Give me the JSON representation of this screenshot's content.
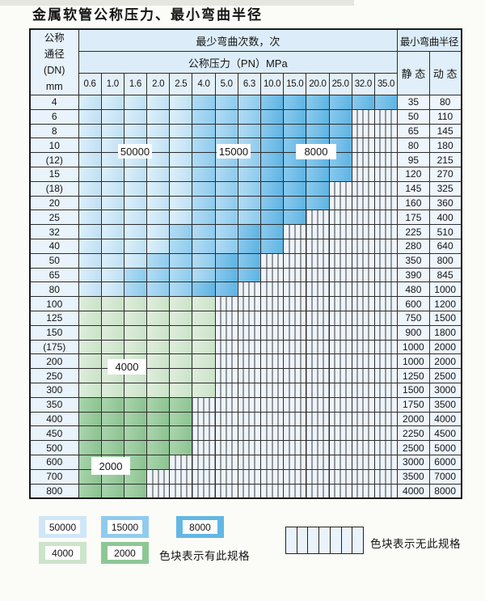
{
  "title": "金属软管公称压力、最小弯曲半径",
  "colors": {
    "band_50000": "#cfe7f7",
    "band_15000": "#90cbee",
    "band_8000": "#63b7e5",
    "band_4000": "#cbe4ca",
    "band_2000": "#8cc794",
    "no_spec_bg": "#eef4fb",
    "header_bg": "#dcedf9",
    "grid_line": "#2c2c2c"
  },
  "table": {
    "dn_header_lines": [
      "公称",
      "通径",
      "(DN)",
      "mm"
    ],
    "bend_times_header": "最少弯曲次数，次",
    "pn_header": "公称压力（PN）MPa",
    "min_radius_header": "最小弯曲半径",
    "static_header": "静 态",
    "dynamic_header": "动 态",
    "pressures": [
      "0.6",
      "1.0",
      "1.6",
      "2.0",
      "2.5",
      "4.0",
      "5.0",
      "6.3",
      "10.0",
      "15.0",
      "20.0",
      "25.0",
      "32.0",
      "35.0"
    ],
    "rows": [
      {
        "dn": "4",
        "static": "35",
        "dynamic": "80",
        "cells": [
          "b1",
          "b1",
          "b1",
          "b1",
          "b1",
          "b2",
          "b2",
          "b2",
          "b3",
          "b3",
          "b3",
          "b3",
          "b3",
          "b3"
        ]
      },
      {
        "dn": "6",
        "static": "50",
        "dynamic": "110",
        "cells": [
          "b1",
          "b1",
          "b1",
          "b1",
          "b1",
          "b2",
          "b2",
          "b2",
          "b3",
          "b3",
          "b3",
          "b3",
          "h",
          "h"
        ]
      },
      {
        "dn": "8",
        "static": "65",
        "dynamic": "145",
        "cells": [
          "b1",
          "b1",
          "b1",
          "b1",
          "b1",
          "b2",
          "b2",
          "b2",
          "b3",
          "b3",
          "b3",
          "b3",
          "h",
          "h"
        ]
      },
      {
        "dn": "10",
        "static": "80",
        "dynamic": "180",
        "cells": [
          "b1",
          "b1",
          "b1",
          "b1",
          "b1",
          "b2",
          "b2",
          "b2",
          "b3",
          "b3",
          "b3",
          "b3",
          "h",
          "h"
        ]
      },
      {
        "dn": "(12)",
        "static": "95",
        "dynamic": "215",
        "cells": [
          "b1",
          "b1",
          "b1",
          "b1",
          "b1",
          "b2",
          "b2",
          "b2",
          "b3",
          "b3",
          "b3",
          "b3",
          "h",
          "h"
        ]
      },
      {
        "dn": "15",
        "static": "120",
        "dynamic": "270",
        "cells": [
          "b1",
          "b1",
          "b1",
          "b1",
          "b1",
          "b2",
          "b2",
          "b2",
          "b3",
          "b3",
          "b3",
          "b3",
          "h",
          "h"
        ]
      },
      {
        "dn": "(18)",
        "static": "145",
        "dynamic": "325",
        "cells": [
          "b1",
          "b1",
          "b1",
          "b1",
          "b1",
          "b2",
          "b2",
          "b2",
          "b3",
          "b3",
          "b3",
          "h",
          "h",
          "h"
        ]
      },
      {
        "dn": "20",
        "static": "160",
        "dynamic": "360",
        "cells": [
          "b1",
          "b1",
          "b1",
          "b1",
          "b1",
          "b2",
          "b2",
          "b2",
          "b3",
          "b3",
          "b3",
          "h",
          "h",
          "h"
        ]
      },
      {
        "dn": "25",
        "static": "175",
        "dynamic": "400",
        "cells": [
          "b1",
          "b1",
          "b1",
          "b1",
          "b1",
          "b2",
          "b2",
          "b2",
          "b3",
          "b3",
          "h",
          "h",
          "h",
          "h"
        ]
      },
      {
        "dn": "32",
        "static": "225",
        "dynamic": "510",
        "cells": [
          "b1",
          "b1",
          "b1",
          "b1",
          "b2",
          "b2",
          "b2",
          "b3",
          "b3",
          "h",
          "h",
          "h",
          "h",
          "h"
        ]
      },
      {
        "dn": "40",
        "static": "280",
        "dynamic": "640",
        "cells": [
          "b1",
          "b1",
          "b1",
          "b1",
          "b2",
          "b2",
          "b2",
          "b3",
          "b3",
          "h",
          "h",
          "h",
          "h",
          "h"
        ]
      },
      {
        "dn": "50",
        "static": "350",
        "dynamic": "800",
        "cells": [
          "b1",
          "b1",
          "b1",
          "b2",
          "b2",
          "b2",
          "b3",
          "b3",
          "h",
          "h",
          "h",
          "h",
          "h",
          "h"
        ]
      },
      {
        "dn": "65",
        "static": "390",
        "dynamic": "845",
        "cells": [
          "b1",
          "b1",
          "b2",
          "b2",
          "b2",
          "b2",
          "b3",
          "b3",
          "h",
          "h",
          "h",
          "h",
          "h",
          "h"
        ]
      },
      {
        "dn": "80",
        "static": "480",
        "dynamic": "1000",
        "cells": [
          "b1",
          "b1",
          "b2",
          "b2",
          "b2",
          "b3",
          "b3",
          "h",
          "h",
          "h",
          "h",
          "h",
          "h",
          "h"
        ]
      },
      {
        "dn": "100",
        "static": "600",
        "dynamic": "1200",
        "cells": [
          "g1",
          "g1",
          "g1",
          "g1",
          "g1",
          "g1",
          "h",
          "h",
          "h",
          "h",
          "h",
          "h",
          "h",
          "h"
        ]
      },
      {
        "dn": "125",
        "static": "750",
        "dynamic": "1500",
        "cells": [
          "g1",
          "g1",
          "g1",
          "g1",
          "g1",
          "g1",
          "h",
          "h",
          "h",
          "h",
          "h",
          "h",
          "h",
          "h"
        ]
      },
      {
        "dn": "150",
        "static": "900",
        "dynamic": "1800",
        "cells": [
          "g1",
          "g1",
          "g1",
          "g1",
          "g1",
          "g1",
          "h",
          "h",
          "h",
          "h",
          "h",
          "h",
          "h",
          "h"
        ]
      },
      {
        "dn": "(175)",
        "static": "1000",
        "dynamic": "2000",
        "cells": [
          "g1",
          "g1",
          "g1",
          "g1",
          "g1",
          "g1",
          "h",
          "h",
          "h",
          "h",
          "h",
          "h",
          "h",
          "h"
        ]
      },
      {
        "dn": "200",
        "static": "1000",
        "dynamic": "2000",
        "cells": [
          "g1",
          "g1",
          "g1",
          "g1",
          "g1",
          "g1",
          "h",
          "h",
          "h",
          "h",
          "h",
          "h",
          "h",
          "h"
        ]
      },
      {
        "dn": "250",
        "static": "1250",
        "dynamic": "2500",
        "cells": [
          "g1",
          "g1",
          "g1",
          "g1",
          "g1",
          "g1",
          "h",
          "h",
          "h",
          "h",
          "h",
          "h",
          "h",
          "h"
        ]
      },
      {
        "dn": "300",
        "static": "1500",
        "dynamic": "3000",
        "cells": [
          "g1",
          "g1",
          "g1",
          "g1",
          "g1",
          "g1",
          "h",
          "h",
          "h",
          "h",
          "h",
          "h",
          "h",
          "h"
        ]
      },
      {
        "dn": "350",
        "static": "1750",
        "dynamic": "3500",
        "cells": [
          "g2",
          "g2",
          "g2",
          "g2",
          "g2",
          "h",
          "h",
          "h",
          "h",
          "h",
          "h",
          "h",
          "h",
          "h"
        ]
      },
      {
        "dn": "400",
        "static": "2000",
        "dynamic": "4000",
        "cells": [
          "g2",
          "g2",
          "g2",
          "g2",
          "g2",
          "h",
          "h",
          "h",
          "h",
          "h",
          "h",
          "h",
          "h",
          "h"
        ]
      },
      {
        "dn": "450",
        "static": "2250",
        "dynamic": "4500",
        "cells": [
          "g2",
          "g2",
          "g2",
          "g2",
          "g2",
          "h",
          "h",
          "h",
          "h",
          "h",
          "h",
          "h",
          "h",
          "h"
        ]
      },
      {
        "dn": "500",
        "static": "2500",
        "dynamic": "5000",
        "cells": [
          "g2",
          "g2",
          "g2",
          "g2",
          "g2",
          "h",
          "h",
          "h",
          "h",
          "h",
          "h",
          "h",
          "h",
          "h"
        ]
      },
      {
        "dn": "600",
        "static": "3000",
        "dynamic": "6000",
        "cells": [
          "g2",
          "g2",
          "g2",
          "g2",
          "h",
          "h",
          "h",
          "h",
          "h",
          "h",
          "h",
          "h",
          "h",
          "h"
        ]
      },
      {
        "dn": "700",
        "static": "3500",
        "dynamic": "7000",
        "cells": [
          "g2",
          "g2",
          "g2",
          "h",
          "h",
          "h",
          "h",
          "h",
          "h",
          "h",
          "h",
          "h",
          "h",
          "h"
        ]
      },
      {
        "dn": "800",
        "static": "4000",
        "dynamic": "8000",
        "cells": [
          "g2",
          "g2",
          "g2",
          "h",
          "h",
          "h",
          "h",
          "h",
          "h",
          "h",
          "h",
          "h",
          "h",
          "h"
        ]
      }
    ]
  },
  "region_labels": [
    "50000",
    "15000",
    "8000",
    "4000",
    "2000"
  ],
  "legend": {
    "swatches": [
      {
        "label": "50000",
        "band": "b1"
      },
      {
        "label": "15000",
        "band": "b2"
      },
      {
        "label": "8000",
        "band": "b3"
      },
      {
        "label": "4000",
        "band": "g1"
      },
      {
        "label": "2000",
        "band": "g2"
      }
    ],
    "has_spec_text": "色块表示有此规格",
    "no_spec_text": "色块表示无此规格",
    "hatch_cells": 7
  }
}
